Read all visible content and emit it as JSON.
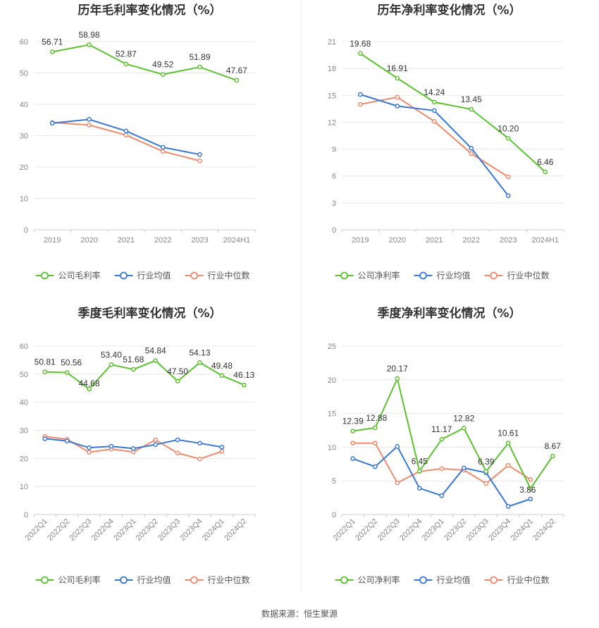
{
  "source": "数据来源：恒生聚源",
  "colors": {
    "company": "#5cc22f",
    "avg": "#3a78d8",
    "median": "#f08a6c",
    "grid": "#e8e8e8",
    "axis": "#cccccc"
  },
  "chart_data": [
    {
      "type": "line",
      "title": "历年毛利率变化情况（%）",
      "categories": [
        "2019",
        "2020",
        "2021",
        "2022",
        "2023",
        "2024H1"
      ],
      "ylim": [
        0,
        60
      ],
      "yticks": [
        0,
        10,
        20,
        30,
        40,
        50,
        60
      ],
      "grid": true,
      "legend_position": "bottom-center",
      "series": [
        {
          "name": "公司毛利率",
          "key": "company",
          "values": [
            56.71,
            58.98,
            52.87,
            49.52,
            51.89,
            47.67
          ],
          "labels": [
            "56.71",
            "58.98",
            "52.87",
            "49.52",
            "51.89",
            "47.67"
          ]
        },
        {
          "name": "行业均值",
          "key": "avg",
          "values": [
            34.0,
            35.2,
            31.5,
            26.3,
            24.0,
            null
          ]
        },
        {
          "name": "行业中位数",
          "key": "median",
          "values": [
            34.2,
            33.4,
            30.2,
            25.0,
            22.0,
            null
          ]
        }
      ]
    },
    {
      "type": "line",
      "title": "历年净利率变化情况（%）",
      "categories": [
        "2019",
        "2020",
        "2021",
        "2022",
        "2023",
        "2024H1"
      ],
      "ylim": [
        0,
        21
      ],
      "yticks": [
        0,
        3,
        6,
        9,
        12,
        15,
        18,
        21
      ],
      "grid": true,
      "legend_position": "bottom-center",
      "series": [
        {
          "name": "公司净利率",
          "key": "company",
          "values": [
            19.68,
            16.91,
            14.24,
            13.45,
            10.2,
            6.46
          ],
          "labels": [
            "19.68",
            "16.91",
            "14.24",
            "13.45",
            "10.20",
            "6.46"
          ]
        },
        {
          "name": "行业均值",
          "key": "avg",
          "values": [
            15.1,
            13.8,
            13.3,
            9.1,
            3.8,
            null
          ]
        },
        {
          "name": "行业中位数",
          "key": "median",
          "values": [
            14.0,
            14.8,
            12.1,
            8.5,
            5.9,
            null
          ]
        }
      ]
    },
    {
      "type": "line",
      "title": "季度毛利率变化情况（%）",
      "categories": [
        "2022Q1",
        "2022Q2",
        "2022Q3",
        "2022Q4",
        "2023Q1",
        "2023Q2",
        "2023Q3",
        "2023Q4",
        "2024Q1",
        "2024Q2"
      ],
      "ylim": [
        0,
        60
      ],
      "yticks": [
        0,
        10,
        20,
        30,
        40,
        50,
        60
      ],
      "grid": true,
      "rotate_x": true,
      "legend_position": "bottom-center",
      "series": [
        {
          "name": "公司毛利率",
          "key": "company",
          "values": [
            50.81,
            50.56,
            44.68,
            53.4,
            51.68,
            54.84,
            47.5,
            54.13,
            49.48,
            46.13
          ],
          "labels": [
            "50.81",
            "50.56",
            "44.68",
            "53.40",
            "51.68",
            "54.84",
            "47.50",
            "54.13",
            "49.48",
            "46.13"
          ]
        },
        {
          "name": "行业均值",
          "key": "avg",
          "values": [
            27.0,
            26.2,
            23.8,
            24.3,
            23.5,
            24.9,
            26.6,
            25.4,
            24.0,
            null
          ]
        },
        {
          "name": "行业中位数",
          "key": "median",
          "values": [
            27.8,
            26.8,
            22.2,
            23.3,
            22.3,
            26.6,
            21.9,
            19.8,
            22.5,
            null
          ]
        }
      ]
    },
    {
      "type": "line",
      "title": "季度净利率变化情况（%）",
      "categories": [
        "2022Q1",
        "2022Q2",
        "2022Q3",
        "2022Q4",
        "2023Q1",
        "2023Q2",
        "2023Q3",
        "2023Q4",
        "2024Q1",
        "2024Q2"
      ],
      "ylim": [
        0,
        25
      ],
      "yticks": [
        0,
        5,
        10,
        15,
        20,
        25
      ],
      "grid": true,
      "rotate_x": true,
      "legend_position": "bottom-center",
      "series": [
        {
          "name": "公司净利率",
          "key": "company",
          "values": [
            12.39,
            12.88,
            20.17,
            6.45,
            11.17,
            12.82,
            6.39,
            10.61,
            3.86,
            8.67
          ],
          "labels": [
            "12.39",
            "12.88",
            "20.17",
            "6.45",
            "11.17",
            "12.82",
            "6.39",
            "10.61",
            "3.86",
            "8.67"
          ]
        },
        {
          "name": "行业均值",
          "key": "avg",
          "values": [
            8.3,
            7.1,
            10.1,
            3.9,
            2.8,
            6.9,
            6.2,
            1.2,
            2.3,
            null
          ]
        },
        {
          "name": "行业中位数",
          "key": "median",
          "values": [
            10.6,
            10.6,
            4.7,
            6.4,
            6.8,
            6.6,
            4.6,
            7.3,
            5.2,
            null
          ]
        }
      ]
    }
  ]
}
